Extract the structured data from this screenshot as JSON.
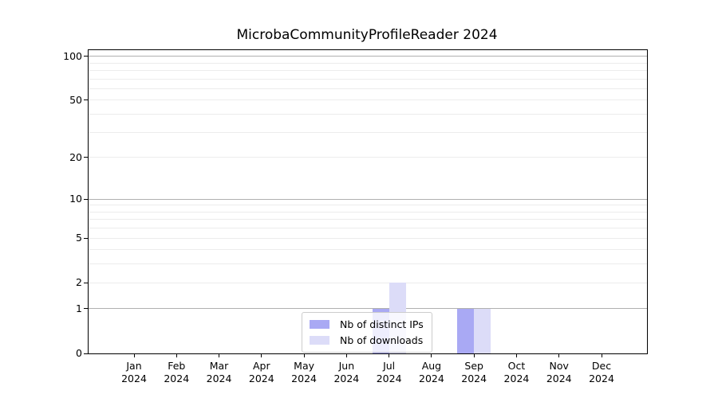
{
  "chart_data": {
    "type": "bar",
    "title": "MicrobaCommunityProfileReader 2024",
    "categories": [
      "Jan",
      "Feb",
      "Mar",
      "Apr",
      "May",
      "Jun",
      "Jul",
      "Aug",
      "Sep",
      "Oct",
      "Nov",
      "Dec"
    ],
    "x_year_label": "2024",
    "series": [
      {
        "name": "Nb of distinct IPs",
        "color": "#a9a9f4",
        "values": [
          0,
          0,
          0,
          0,
          0,
          0,
          1,
          0,
          1,
          0,
          0,
          0
        ]
      },
      {
        "name": "Nb of downloads",
        "color": "#dcdcf8",
        "values": [
          0,
          0,
          0,
          0,
          0,
          0,
          2,
          0,
          1,
          0,
          0,
          0
        ]
      }
    ],
    "yscale": "log1p",
    "yticks": [
      0,
      1,
      2,
      5,
      10,
      20,
      50,
      100
    ],
    "ylim": [
      0,
      110
    ],
    "xlabel": "",
    "ylabel": "",
    "grid": {
      "major_values": [
        1,
        10,
        100
      ],
      "major_color": "#b0b0b0",
      "minor_color": "#ececec",
      "minor_on": true
    },
    "legend_position": "lower center",
    "bar_group": "side-by-side"
  }
}
